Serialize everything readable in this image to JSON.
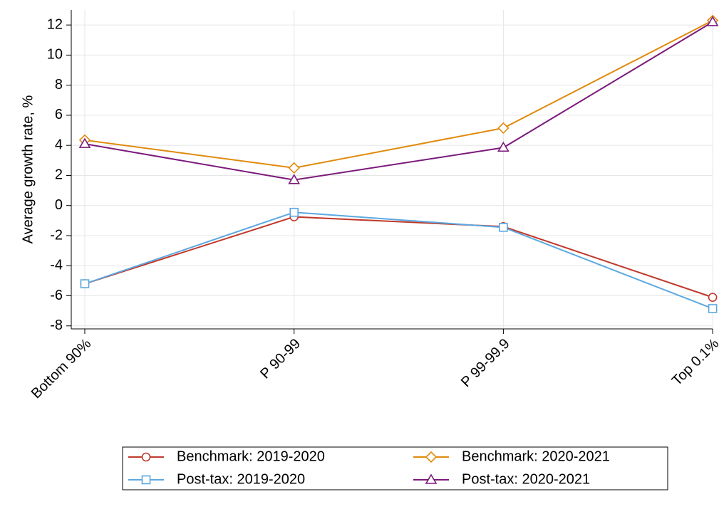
{
  "chart_data": {
    "type": "line",
    "y_label": "Average growth rate, %",
    "categories": [
      "Bottom 90%",
      "P 90-99",
      "P 99-99.9",
      "Top 0.1%"
    ],
    "series": [
      {
        "name": "Benchmark: 2019-2020",
        "color": "#c0392b",
        "marker": "circle",
        "values": [
          -5.2,
          -0.75,
          -1.4,
          -6.1
        ]
      },
      {
        "name": "Benchmark: 2020-2021",
        "color": "#e08a0c",
        "marker": "diamond",
        "values": [
          4.35,
          2.5,
          5.15,
          12.3
        ]
      },
      {
        "name": "Post-tax: 2019-2020",
        "color": "#5ca8e0",
        "marker": "square",
        "values": [
          -5.2,
          -0.45,
          -1.45,
          -6.85
        ]
      },
      {
        "name": "Post-tax: 2020-2021",
        "color": "#7b1a7b",
        "marker": "triangle",
        "values": [
          4.1,
          1.7,
          3.85,
          12.2
        ]
      }
    ],
    "ylim": [
      -8.2,
      13
    ],
    "yticks": [
      -8,
      -6,
      -4,
      -2,
      0,
      2,
      4,
      6,
      8,
      10,
      12
    ],
    "grid": true
  }
}
